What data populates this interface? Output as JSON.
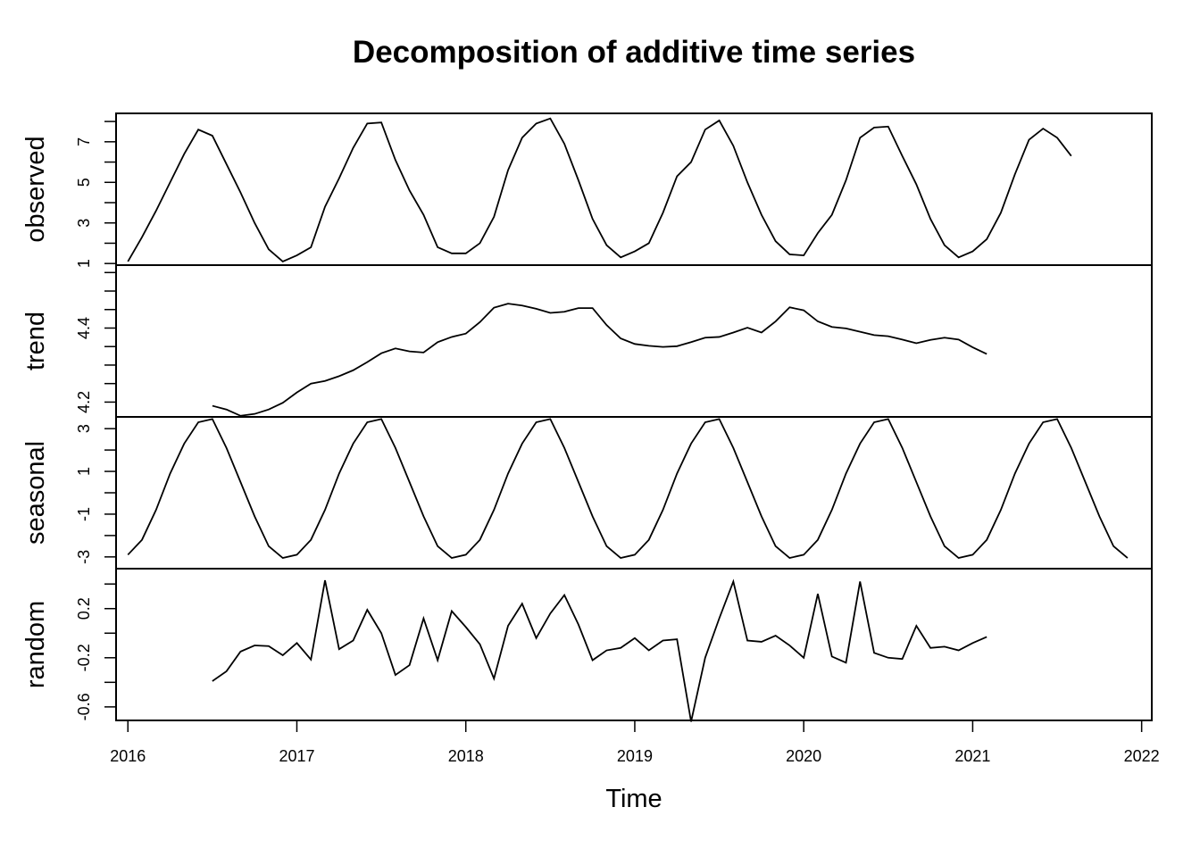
{
  "chart_data": {
    "type": "line",
    "title": "Decomposition of additive time series",
    "xlabel": "Time",
    "xlim": [
      2015.93,
      2022.06
    ],
    "x_ticks": [
      2016,
      2017,
      2018,
      2019,
      2020,
      2021,
      2022
    ],
    "x_tick_labels": [
      "2016",
      "2017",
      "2018",
      "2019",
      "2020",
      "2021",
      "2022"
    ],
    "frequency": 12,
    "panels": [
      {
        "name": "observed",
        "ylabel": "observed",
        "ylim": [
          0.92,
          8.4
        ],
        "y_ticks": [
          1,
          2,
          3,
          4,
          5,
          6,
          7,
          8
        ],
        "y_tick_labels": {
          "1": "1",
          "3": "3",
          "5": "5",
          "7": "7"
        },
        "start": 2016,
        "values": [
          1.1,
          2.3,
          3.6,
          5.0,
          6.4,
          7.6,
          7.3,
          5.9,
          4.5,
          3.0,
          1.7,
          1.1,
          1.4,
          1.8,
          3.8,
          5.2,
          6.7,
          7.9,
          7.95,
          6.1,
          4.6,
          3.4,
          1.8,
          1.5,
          1.5,
          2.0,
          3.3,
          5.6,
          7.2,
          7.9,
          8.15,
          6.9,
          5.1,
          3.2,
          1.9,
          1.3,
          1.6,
          2.0,
          3.5,
          5.3,
          6.0,
          7.6,
          8.05,
          6.8,
          5.0,
          3.4,
          2.1,
          1.45,
          1.4,
          2.5,
          3.4,
          5.1,
          7.2,
          7.7,
          7.75,
          6.3,
          4.9,
          3.2,
          1.9,
          1.3,
          1.6,
          2.2,
          3.5,
          5.4,
          7.1,
          7.65,
          7.2,
          6.3
        ]
      },
      {
        "name": "trend",
        "ylabel": "trend",
        "ylim": [
          4.16,
          4.57
        ],
        "y_ticks": [
          4.2,
          4.25,
          4.3,
          4.35,
          4.4,
          4.45,
          4.5,
          4.55
        ],
        "y_tick_labels": {
          "4.2": "4.2",
          "4.4": "4.4"
        },
        "start": 2016.5,
        "values": [
          4.19,
          4.18,
          4.163,
          4.168,
          4.18,
          4.198,
          4.226,
          4.25,
          4.257,
          4.27,
          4.286,
          4.308,
          4.332,
          4.345,
          4.337,
          4.334,
          4.362,
          4.376,
          4.385,
          4.416,
          4.455,
          4.466,
          4.461,
          4.452,
          4.441,
          4.444,
          4.454,
          4.454,
          4.408,
          4.372,
          4.357,
          4.352,
          4.349,
          4.351,
          4.362,
          4.374,
          4.376,
          4.388,
          4.401,
          4.388,
          4.418,
          4.456,
          4.448,
          4.418,
          4.403,
          4.399,
          4.39,
          4.381,
          4.378,
          4.369,
          4.359,
          4.368,
          4.374,
          4.369,
          4.348,
          4.33
        ]
      },
      {
        "name": "seasonal",
        "ylabel": "seasonal",
        "ylim": [
          -3.55,
          3.55
        ],
        "y_ticks": [
          -3,
          -2,
          -1,
          0,
          1,
          2,
          3
        ],
        "y_tick_labels": {
          "-3": "-3",
          "-1": "-1",
          "1": "1",
          "3": "3"
        },
        "start": 2016,
        "values": [
          -2.9,
          -2.2,
          -0.8,
          0.9,
          2.3,
          3.3,
          3.45,
          2.1,
          0.5,
          -1.1,
          -2.5,
          -3.05,
          -2.9,
          -2.2,
          -0.8,
          0.9,
          2.3,
          3.3,
          3.45,
          2.1,
          0.5,
          -1.1,
          -2.5,
          -3.05,
          -2.9,
          -2.2,
          -0.8,
          0.9,
          2.3,
          3.3,
          3.45,
          2.1,
          0.5,
          -1.1,
          -2.5,
          -3.05,
          -2.9,
          -2.2,
          -0.8,
          0.9,
          2.3,
          3.3,
          3.45,
          2.1,
          0.5,
          -1.1,
          -2.5,
          -3.05,
          -2.9,
          -2.2,
          -0.8,
          0.9,
          2.3,
          3.3,
          3.45,
          2.1,
          0.5,
          -1.1,
          -2.5,
          -3.05,
          -2.9,
          -2.2,
          -0.8,
          0.9,
          2.3,
          3.3,
          3.45,
          2.1,
          0.5,
          -1.1,
          -2.5,
          -3.05
        ]
      },
      {
        "name": "random",
        "ylabel": "random",
        "ylim": [
          -0.71,
          0.525
        ],
        "y_ticks": [
          -0.6,
          -0.4,
          -0.2,
          0,
          0.2,
          0.4
        ],
        "y_tick_labels": {
          "-0.6": "-0.6",
          "-0.2": "-0.2",
          "0.2": "0.2"
        },
        "start": 2016.5,
        "values": [
          -0.39,
          -0.31,
          -0.15,
          -0.1,
          -0.105,
          -0.18,
          -0.08,
          -0.215,
          0.43,
          -0.13,
          -0.06,
          0.19,
          0.0,
          -0.34,
          -0.26,
          0.12,
          -0.22,
          0.18,
          0.05,
          -0.09,
          -0.37,
          0.06,
          0.24,
          -0.04,
          0.16,
          0.31,
          0.07,
          -0.22,
          -0.14,
          -0.12,
          -0.04,
          -0.14,
          -0.06,
          -0.05,
          -0.72,
          -0.2,
          0.12,
          0.42,
          -0.06,
          -0.07,
          -0.02,
          -0.1,
          -0.2,
          0.32,
          -0.19,
          -0.24,
          0.42,
          -0.16,
          -0.2,
          -0.21,
          0.06,
          -0.12,
          -0.11,
          -0.14,
          -0.08,
          -0.03
        ]
      }
    ]
  }
}
